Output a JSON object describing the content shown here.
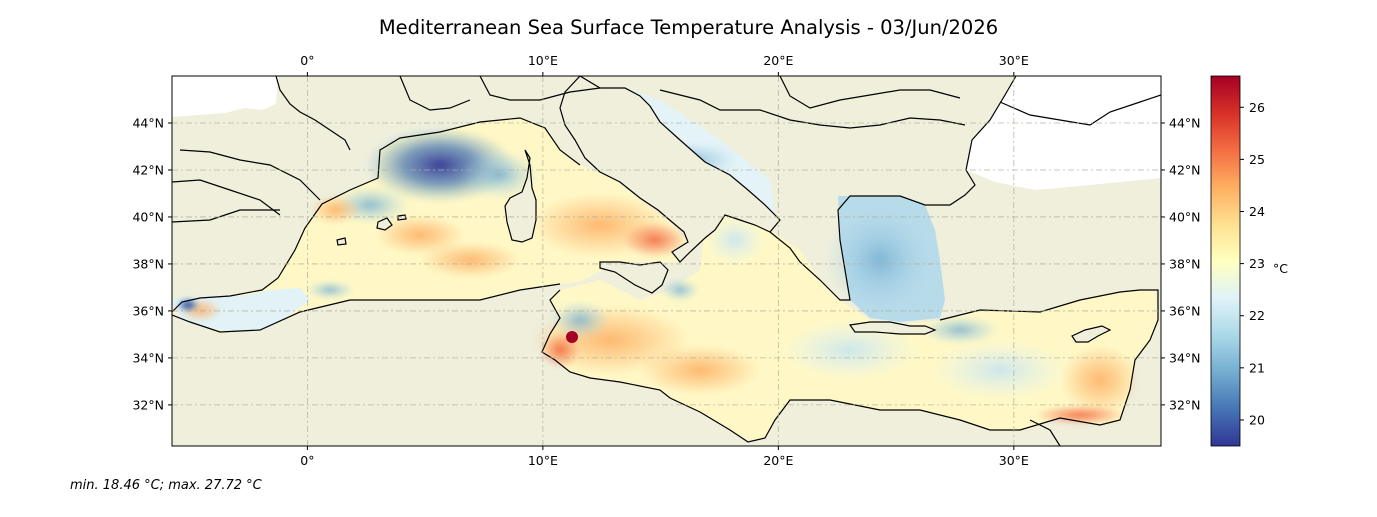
{
  "title": "Mediterranean Sea Surface Temperature Analysis - 03/Jun/2026",
  "footer": "min. 18.46 °C; max. 27.72 °C",
  "map": {
    "lon_range": [
      -5.75,
      36.25
    ],
    "lat_range": [
      30.25,
      46.0
    ],
    "lon_ticks": [
      {
        "value": 0,
        "label": "0°"
      },
      {
        "value": 10,
        "label": "10°E"
      },
      {
        "value": 20,
        "label": "20°E"
      },
      {
        "value": 30,
        "label": "30°E"
      }
    ],
    "lat_ticks": [
      {
        "value": 32,
        "label": "32°N"
      },
      {
        "value": 34,
        "label": "34°N"
      },
      {
        "value": 36,
        "label": "36°N"
      },
      {
        "value": 38,
        "label": "38°N"
      },
      {
        "value": 40,
        "label": "40°N"
      },
      {
        "value": 42,
        "label": "42°N"
      },
      {
        "value": 44,
        "label": "44°N"
      }
    ],
    "grid": true,
    "land_color": "#efefdc",
    "coast_color": "#000000"
  },
  "colorbar": {
    "unit_label": "°C",
    "range": [
      19.5,
      26.6
    ],
    "ticks": [
      {
        "value": 20,
        "label": "20"
      },
      {
        "value": 21,
        "label": "21"
      },
      {
        "value": 22,
        "label": "22"
      },
      {
        "value": 23,
        "label": "23"
      },
      {
        "value": 24,
        "label": "24"
      },
      {
        "value": 25,
        "label": "25"
      },
      {
        "value": 26,
        "label": "26"
      }
    ],
    "colors": [
      "#313695",
      "#4575b4",
      "#74add1",
      "#abd9e9",
      "#e0f3f8",
      "#ffffbf",
      "#fee090",
      "#fdae61",
      "#f46d43",
      "#d73027",
      "#a50026"
    ]
  }
}
